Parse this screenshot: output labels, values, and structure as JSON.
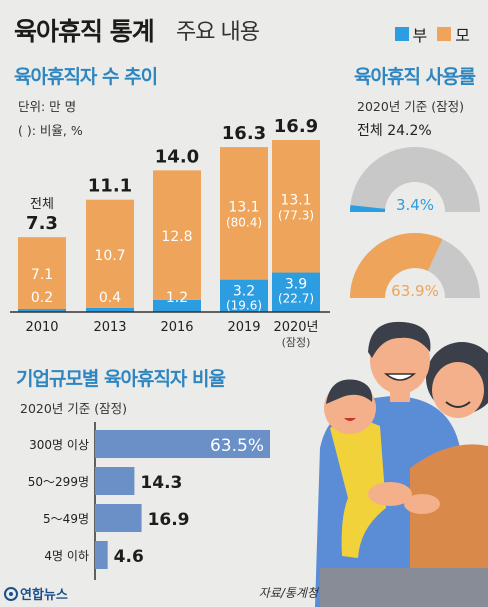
{
  "header": {
    "title": "육아휴직 통계",
    "subtitle": "주요 내용",
    "legend": [
      {
        "label": "부",
        "color": "#2b9de0"
      },
      {
        "label": "모",
        "color": "#eea45a"
      }
    ]
  },
  "colors": {
    "father": "#2b9de0",
    "mother": "#eea45a",
    "bar2": "#6b8fc7",
    "gauge_bg": "#c8c8c8"
  },
  "chart_data": [
    {
      "type": "bar",
      "title": "육아휴직자 수 추이",
      "unit_note": "단위: 만 명",
      "paren_note": "( ): 비율, %",
      "total_caption": "전체",
      "categories": [
        "2010",
        "2013",
        "2016",
        "2019",
        "2020년"
      ],
      "category_notes": [
        "",
        "",
        "",
        "",
        "(잠정)"
      ],
      "totals": [
        "7.3",
        "11.1",
        "14.0",
        "16.3",
        "16.9"
      ],
      "series": [
        {
          "name": "부",
          "values": [
            0.2,
            0.4,
            1.2,
            3.2,
            3.9
          ],
          "labels": [
            "0.2",
            "0.4",
            "1.2",
            "3.2",
            "3.9"
          ],
          "pct": [
            "",
            "",
            "",
            "(19.6)",
            "(22.7)"
          ]
        },
        {
          "name": "모",
          "values": [
            7.1,
            10.7,
            12.8,
            13.1,
            13.1
          ],
          "labels": [
            "7.1",
            "10.7",
            "12.8",
            "13.1",
            "13.1"
          ],
          "pct": [
            "",
            "",
            "",
            "(80.4)",
            "(77.3)"
          ]
        }
      ],
      "ylim": [
        0,
        17
      ]
    },
    {
      "type": "pie",
      "title": "육아휴직 사용률",
      "basis": "2020년 기준 (잠정)",
      "overall": "전체 24.2%",
      "gauges": [
        {
          "name": "부",
          "value": 3.4,
          "label": "3.4%"
        },
        {
          "name": "모",
          "value": 63.9,
          "label": "63.9%"
        }
      ]
    },
    {
      "type": "bar",
      "title": "기업규모별 육아휴직자 비율",
      "basis": "2020년 기준 (잠정)",
      "categories": [
        "300명 이상",
        "50～299명",
        "5～49명",
        "4명 이하"
      ],
      "values": [
        63.5,
        14.3,
        16.9,
        4.6
      ],
      "labels": [
        "63.5%",
        "14.3",
        "16.9",
        "4.6"
      ],
      "xlim": [
        0,
        63.5
      ]
    }
  ],
  "footer": {
    "source": "자료/통계청",
    "brand": "연합뉴스"
  }
}
